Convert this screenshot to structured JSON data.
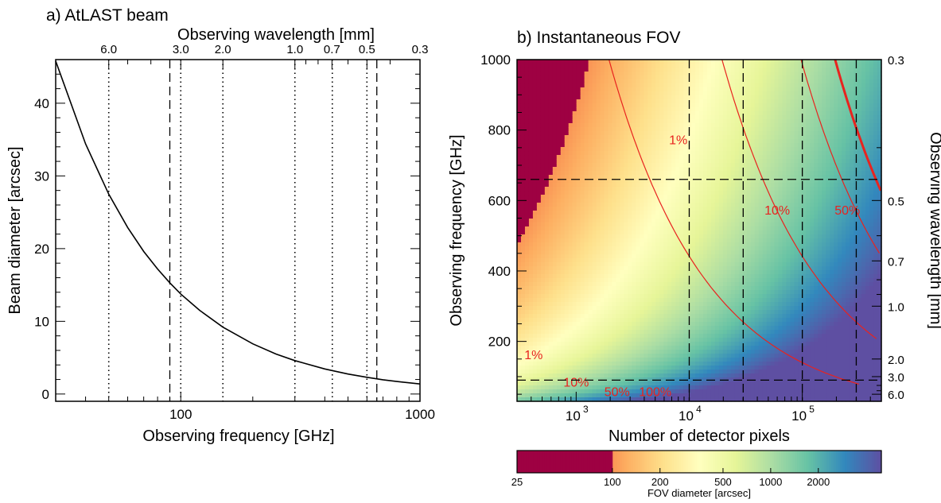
{
  "chart_data": [
    {
      "type": "line",
      "panel": "a",
      "title": "a) AtLAST beam",
      "xlabel": "Observing frequency [GHz]",
      "ylabel": "Beam diameter [arcsec]",
      "top_xlabel": "Observing wavelength [mm]",
      "x_scale": "log",
      "xlim": [
        30,
        1000
      ],
      "ylim": [
        -1,
        46
      ],
      "x_ticks": [
        100,
        1000
      ],
      "x_tick_labels": [
        "100",
        "1000"
      ],
      "y_ticks": [
        0,
        10,
        20,
        30,
        40
      ],
      "y_tick_labels": [
        "0",
        "10",
        "20",
        "30",
        "40"
      ],
      "top_ticks_mm": [
        6.0,
        3.0,
        2.0,
        1.0,
        0.7,
        0.5,
        0.3
      ],
      "top_tick_labels": [
        "6.0",
        "3.0",
        "2.0",
        "1.0",
        "0.7",
        "0.5",
        "0.3"
      ],
      "dotted_lines_ghz": [
        50,
        100,
        150,
        300,
        430,
        600
      ],
      "dashed_lines_ghz": [
        90,
        660
      ],
      "series": [
        {
          "x": [
            30,
            40,
            50,
            60,
            70,
            80,
            90,
            100,
            120,
            150,
            200,
            250,
            300,
            400,
            500,
            600,
            700,
            800,
            1000
          ],
          "values": [
            45.8,
            34.4,
            27.5,
            22.9,
            19.6,
            17.2,
            15.3,
            13.75,
            11.5,
            9.2,
            6.9,
            5.5,
            4.6,
            3.45,
            2.75,
            2.3,
            1.96,
            1.72,
            1.38
          ]
        }
      ]
    },
    {
      "type": "heatmap",
      "panel": "b",
      "title": "b) Instantaneous FOV",
      "xlabel": "Number of detector pixels",
      "ylabel": "Observing frequency [GHz]",
      "right_ylabel": "Observing wavelength [mm]",
      "x_scale": "log",
      "xlim": [
        300,
        500000
      ],
      "ylim": [
        30,
        1000
      ],
      "x_ticks": [
        1000,
        10000,
        100000
      ],
      "x_tick_labels": [
        "10",
        "10",
        "10"
      ],
      "x_tick_exponents": [
        "3",
        "4",
        "5"
      ],
      "y_ticks": [
        200,
        400,
        600,
        800,
        1000
      ],
      "y_tick_labels": [
        "200",
        "400",
        "600",
        "800",
        "1000"
      ],
      "right_ticks_mm": [
        0.3,
        0.5,
        0.7,
        1.0,
        2.0,
        3.0,
        6.0
      ],
      "right_tick_labels": [
        "0.3",
        "0.5",
        "0.7",
        "1.0",
        "2.0",
        "3.0",
        "6.0"
      ],
      "dashed_x_pixels": [
        10000,
        30000,
        100000,
        300000
      ],
      "dashed_y_ghz": [
        90,
        660
      ],
      "contours": [
        {
          "label": "1%",
          "fraction": 0.01
        },
        {
          "label": "10%",
          "fraction": 0.1
        },
        {
          "label": "50%",
          "fraction": 0.5
        },
        {
          "label": "100%",
          "fraction": 1.0
        }
      ],
      "colorbar": {
        "label": "FOV diameter [arcsec]",
        "scale": "log",
        "range": [
          25,
          5000
        ],
        "ticks": [
          25,
          100,
          200,
          500,
          1000,
          2000
        ],
        "tick_labels": [
          "25",
          "100",
          "200",
          "500",
          "1000",
          "2000"
        ],
        "saturate_below": 100
      },
      "colormap": [
        "#9e0142",
        "#d53e4f",
        "#f46d43",
        "#fdae61",
        "#fee08b",
        "#ffffbf",
        "#e6f598",
        "#abdda4",
        "#66c2a5",
        "#3288bd",
        "#5e4fa2"
      ]
    }
  ]
}
